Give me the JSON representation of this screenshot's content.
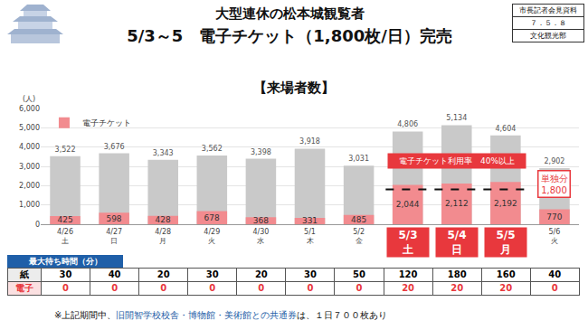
{
  "header": {
    "title_lines": [
      "大型連休の松本城観覧者",
      "5/3～5　電子チケット（1,800枚/日）完売"
    ],
    "info_box": [
      "市長記者会見資料",
      "７．５．８",
      "文化観光部"
    ]
  },
  "chart_data": {
    "type": "bar",
    "title": "【来場者数】",
    "ylabel": "(人)",
    "categories": [
      "4/26",
      "4/27",
      "4/28",
      "4/29",
      "4/30",
      "5/1",
      "5/2",
      "5/3",
      "5/4",
      "5/5",
      "5/6"
    ],
    "weekdays": [
      "土",
      "日",
      "月",
      "火",
      "水",
      "木",
      "金",
      "土",
      "日",
      "月",
      "火"
    ],
    "highlighted_categories": [
      "5/3",
      "5/4",
      "5/5"
    ],
    "series": [
      {
        "color": "#c9c9c9",
        "values": [
          3522,
          3676,
          3343,
          3562,
          3398,
          3918,
          3031,
          4806,
          5134,
          4604,
          2902
        ],
        "value_labels": [
          "3,522",
          "3,676",
          "3,343",
          "3,562",
          "3,398",
          "3,918",
          "3,031",
          "4,806",
          "5,134",
          "4,604",
          "2,902"
        ]
      },
      {
        "name": "電子チケット",
        "color": "#f28b8f",
        "values": [
          425,
          598,
          428,
          678,
          368,
          331,
          485,
          2044,
          2112,
          2192,
          770
        ],
        "value_labels": [
          "425",
          "598",
          "428",
          "678",
          "368",
          "331",
          "485",
          "2,044",
          "2,112",
          "2,192",
          "770"
        ]
      }
    ],
    "ylim": [
      0,
      6000
    ],
    "yticks": [
      0,
      {
        "value": 1000,
        "label": "1,000"
      },
      {
        "value": 2000,
        "label": "2,000"
      },
      {
        "value": 3000,
        "label": "3,000"
      },
      {
        "value": 4000,
        "label": "4,000"
      },
      {
        "value": 5000,
        "label": "5,000"
      },
      {
        "value": 6000,
        "label": "6,000"
      }
    ],
    "grid": true,
    "legend": "top left",
    "data_labels": true,
    "annotations": [
      {
        "text": "電子チケット利用率　40%以上",
        "color": "#e8383d"
      }
    ],
    "reference_line": {
      "value": 1800,
      "label": [
        "単独分",
        "1,800"
      ],
      "color": "#e8383d"
    }
  },
  "wait_table": {
    "caption": "最大待ち時間（分）",
    "rows": [
      {
        "label": "紙",
        "values": [
          30,
          40,
          20,
          30,
          20,
          30,
          50,
          120,
          180,
          160,
          40
        ]
      },
      {
        "label": "電子",
        "values": [
          0,
          0,
          0,
          0,
          0,
          0,
          0,
          20,
          20,
          20,
          0
        ],
        "color": "#e8383d"
      }
    ]
  },
  "footnote": [
    {
      "text": "※上記期間中、"
    },
    {
      "text": "旧開智学校校舎・博物館・美術館との共通券",
      "color": "#1f5fa8"
    },
    {
      "text": "は、１日７００枚あり"
    }
  ]
}
